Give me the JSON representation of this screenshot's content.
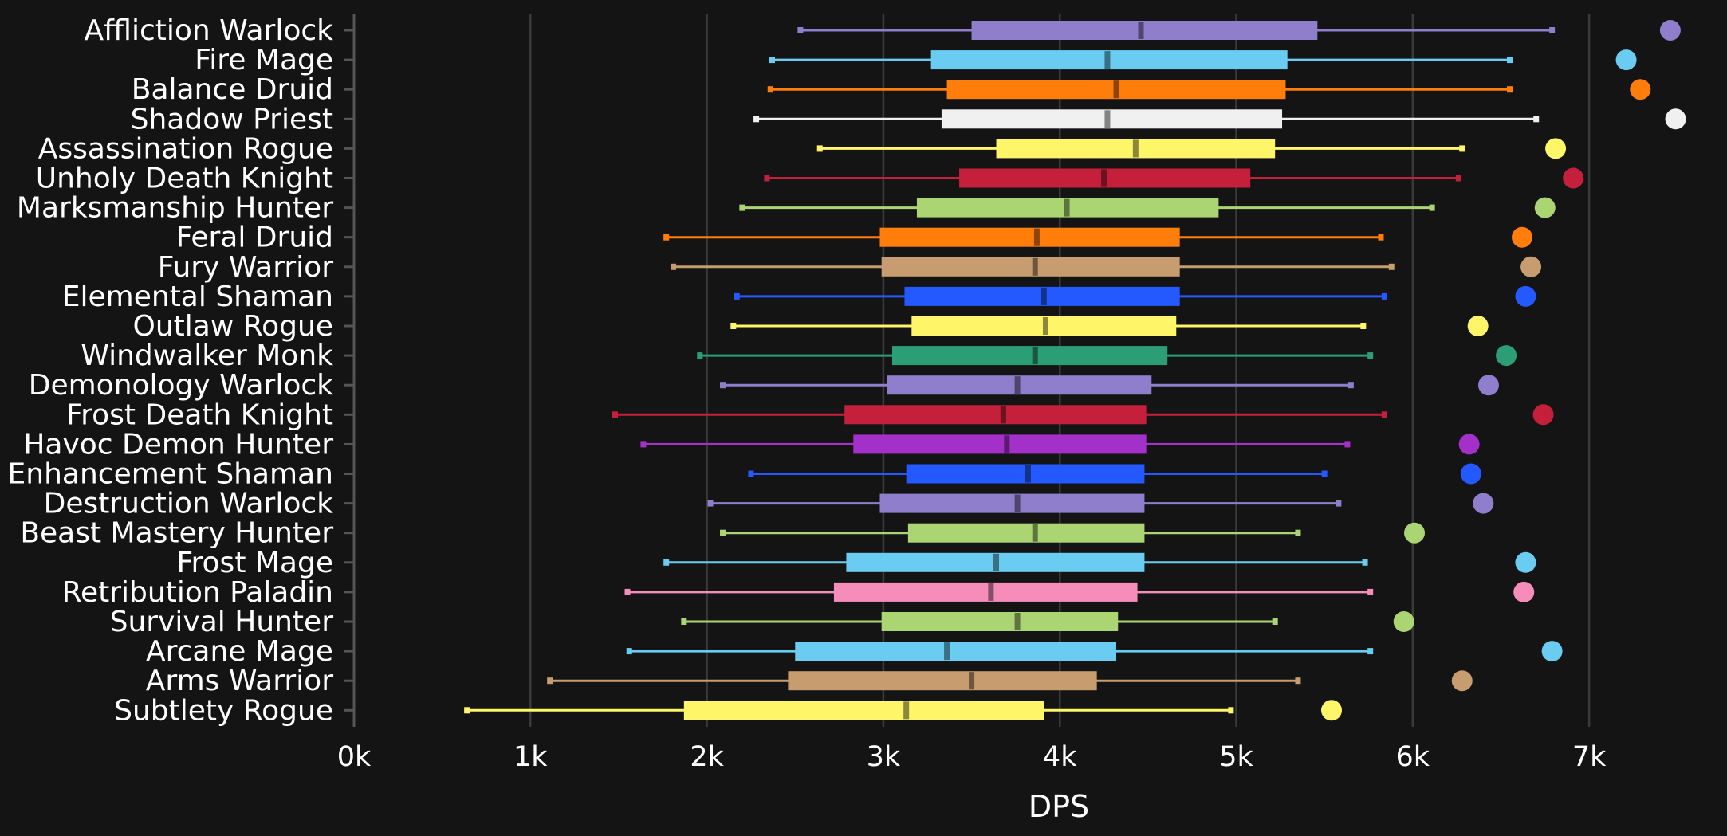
{
  "chart_data": {
    "type": "boxplot",
    "title": "",
    "xlabel": "DPS",
    "ylabel": "",
    "xlim": [
      0,
      7800
    ],
    "xticks": [
      0,
      1000,
      2000,
      3000,
      4000,
      5000,
      6000,
      7000
    ],
    "xtick_labels": [
      "0k",
      "1k",
      "2k",
      "3k",
      "4k",
      "5k",
      "6k",
      "7k"
    ],
    "grid": "vertical",
    "background": "#141414",
    "series": [
      {
        "name": "Affliction Warlock",
        "color": "#8f7ecb",
        "min": 2530,
        "q1": 3500,
        "median": 4460,
        "q3": 5460,
        "max": 6790,
        "top": 7460
      },
      {
        "name": "Fire Mage",
        "color": "#69ccf0",
        "min": 2370,
        "q1": 3270,
        "median": 4270,
        "q3": 5290,
        "max": 6550,
        "top": 7210
      },
      {
        "name": "Balance Druid",
        "color": "#ff7d0a",
        "min": 2360,
        "q1": 3360,
        "median": 4320,
        "q3": 5280,
        "max": 6550,
        "top": 7290
      },
      {
        "name": "Shadow Priest",
        "color": "#f0f0f0",
        "min": 2280,
        "q1": 3330,
        "median": 4270,
        "q3": 5260,
        "max": 6700,
        "top": 7490
      },
      {
        "name": "Assassination Rogue",
        "color": "#fff569",
        "min": 2640,
        "q1": 3640,
        "median": 4430,
        "q3": 5220,
        "max": 6280,
        "top": 6810
      },
      {
        "name": "Unholy Death Knight",
        "color": "#c41f3b",
        "min": 2340,
        "q1": 3430,
        "median": 4250,
        "q3": 5080,
        "max": 6260,
        "top": 6910
      },
      {
        "name": "Marksmanship Hunter",
        "color": "#abd473",
        "min": 2200,
        "q1": 3190,
        "median": 4040,
        "q3": 4900,
        "max": 6110,
        "top": 6750
      },
      {
        "name": "Feral Druid",
        "color": "#ff7d0a",
        "min": 1770,
        "q1": 2980,
        "median": 3870,
        "q3": 4680,
        "max": 5820,
        "top": 6620
      },
      {
        "name": "Fury Warrior",
        "color": "#c79c6e",
        "min": 1810,
        "q1": 2990,
        "median": 3860,
        "q3": 4680,
        "max": 5880,
        "top": 6670
      },
      {
        "name": "Elemental Shaman",
        "color": "#2459ff",
        "min": 2170,
        "q1": 3120,
        "median": 3910,
        "q3": 4680,
        "max": 5840,
        "top": 6640
      },
      {
        "name": "Outlaw Rogue",
        "color": "#fff569",
        "min": 2150,
        "q1": 3160,
        "median": 3920,
        "q3": 4660,
        "max": 5720,
        "top": 6370
      },
      {
        "name": "Windwalker Monk",
        "color": "#2b9e75",
        "min": 1960,
        "q1": 3050,
        "median": 3860,
        "q3": 4610,
        "max": 5760,
        "top": 6530
      },
      {
        "name": "Demonology Warlock",
        "color": "#8f7ecb",
        "min": 2090,
        "q1": 3020,
        "median": 3760,
        "q3": 4520,
        "max": 5650,
        "top": 6430
      },
      {
        "name": "Frost Death Knight",
        "color": "#c41f3b",
        "min": 1480,
        "q1": 2780,
        "median": 3680,
        "q3": 4490,
        "max": 5840,
        "top": 6740
      },
      {
        "name": "Havoc Demon Hunter",
        "color": "#a330c9",
        "min": 1640,
        "q1": 2830,
        "median": 3700,
        "q3": 4490,
        "max": 5630,
        "top": 6320
      },
      {
        "name": "Enhancement Shaman",
        "color": "#2459ff",
        "min": 2250,
        "q1": 3130,
        "median": 3820,
        "q3": 4480,
        "max": 5500,
        "top": 6330
      },
      {
        "name": "Destruction Warlock",
        "color": "#8f7ecb",
        "min": 2020,
        "q1": 2980,
        "median": 3760,
        "q3": 4480,
        "max": 5580,
        "top": 6400
      },
      {
        "name": "Beast Mastery Hunter",
        "color": "#abd473",
        "min": 2090,
        "q1": 3140,
        "median": 3860,
        "q3": 4480,
        "max": 5350,
        "top": 6010
      },
      {
        "name": "Frost Mage",
        "color": "#69ccf0",
        "min": 1770,
        "q1": 2790,
        "median": 3640,
        "q3": 4480,
        "max": 5730,
        "top": 6640
      },
      {
        "name": "Retribution Paladin",
        "color": "#f58cba",
        "min": 1550,
        "q1": 2720,
        "median": 3610,
        "q3": 4440,
        "max": 5760,
        "top": 6630
      },
      {
        "name": "Survival Hunter",
        "color": "#abd473",
        "min": 1870,
        "q1": 2990,
        "median": 3760,
        "q3": 4330,
        "max": 5220,
        "top": 5950
      },
      {
        "name": "Arcane Mage",
        "color": "#69ccf0",
        "min": 1560,
        "q1": 2500,
        "median": 3360,
        "q3": 4320,
        "max": 5760,
        "top": 6790
      },
      {
        "name": "Arms Warrior",
        "color": "#c79c6e",
        "min": 1110,
        "q1": 2460,
        "median": 3500,
        "q3": 4210,
        "max": 5350,
        "top": 6280
      },
      {
        "name": "Subtlety Rogue",
        "color": "#fff569",
        "min": 640,
        "q1": 1870,
        "median": 3130,
        "q3": 3910,
        "max": 4970,
        "top": 5540
      }
    ]
  }
}
